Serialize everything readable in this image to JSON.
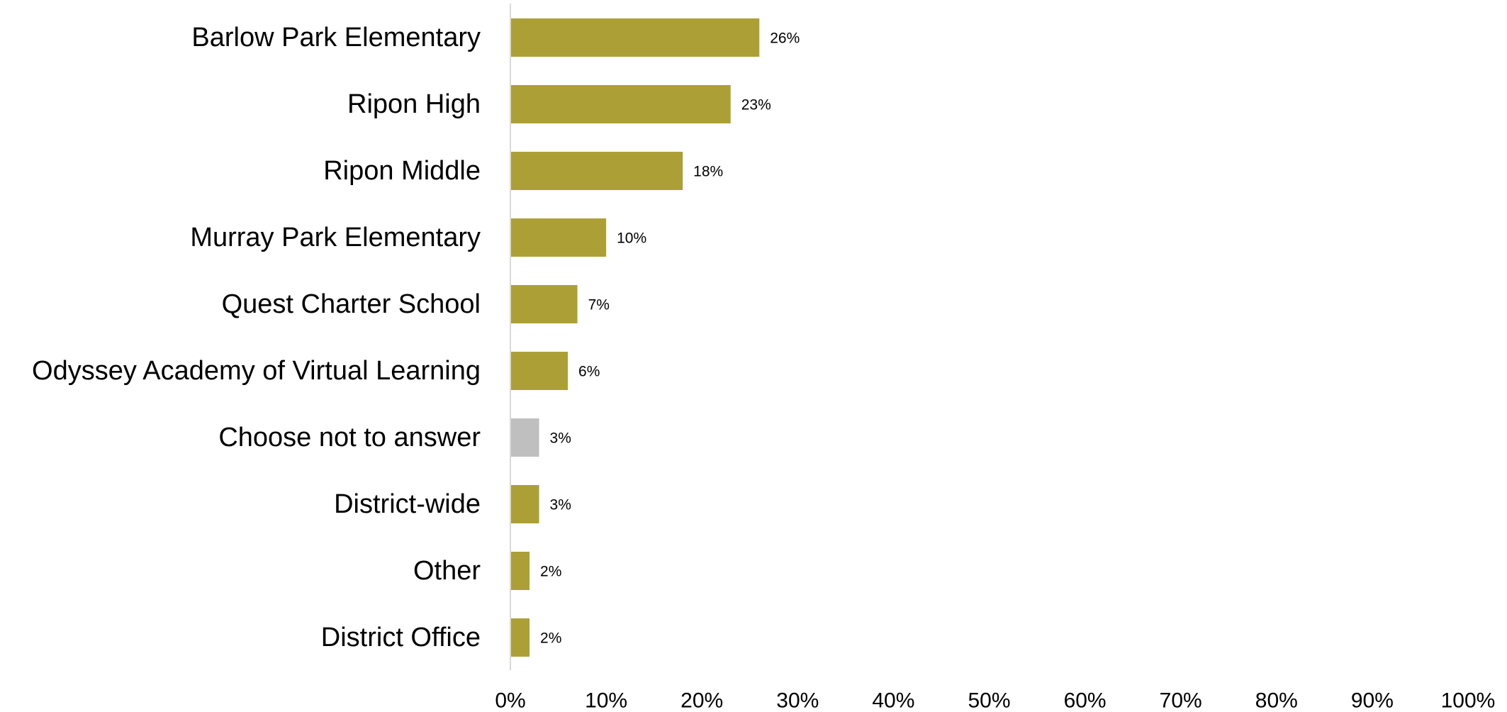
{
  "chart_data": {
    "type": "bar",
    "orientation": "horizontal",
    "title": "",
    "xlabel": "",
    "ylabel": "",
    "xlim": [
      0,
      100
    ],
    "grid": false,
    "legend": "none",
    "categories": [
      "Barlow Park Elementary",
      "Ripon High",
      "Ripon Middle",
      "Murray Park Elementary",
      "Quest Charter School",
      "Odyssey Academy of Virtual Learning",
      "Choose not to answer",
      "District-wide",
      "Other",
      "District Office"
    ],
    "values": [
      26,
      23,
      18,
      10,
      7,
      6,
      3,
      3,
      2,
      2
    ],
    "value_labels": [
      "26%",
      "23%",
      "18%",
      "10%",
      "7%",
      "6%",
      "3%",
      "3%",
      "2%",
      "2%"
    ],
    "bar_colors": [
      "#AC9F35",
      "#AC9F35",
      "#AC9F35",
      "#AC9F35",
      "#AC9F35",
      "#AC9F35",
      "#BFBFBF",
      "#AC9F35",
      "#AC9F35",
      "#AC9F35"
    ],
    "x_ticks": [
      0,
      10,
      20,
      30,
      40,
      50,
      60,
      70,
      80,
      90,
      100
    ],
    "x_tick_labels": [
      "0%",
      "10%",
      "20%",
      "30%",
      "40%",
      "50%",
      "60%",
      "70%",
      "80%",
      "90%",
      "100%"
    ],
    "axis_color": "#D9D9D9"
  }
}
